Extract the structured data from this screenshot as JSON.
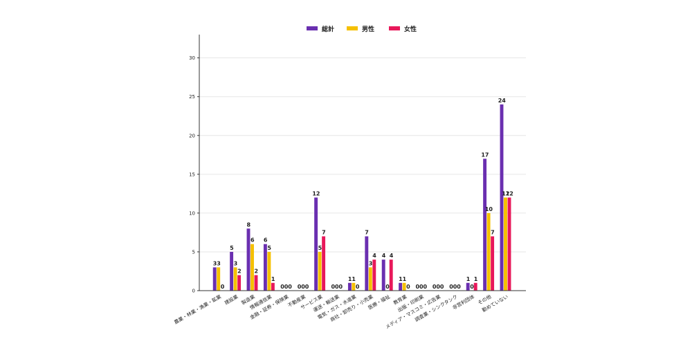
{
  "chart_data": {
    "type": "bar",
    "categories": [
      "農業・林業・漁業・鉱業",
      "建設業",
      "製造業",
      "情報通信業",
      "金融・証券・保険業",
      "不動産業",
      "サービス業",
      "運送・輸送業",
      "電気・ガス・水道業",
      "商社・卸売り・小売業",
      "医療・福祉",
      "教育業",
      "出版・印刷業",
      "メディア・マスコミ・広告業",
      "調査業・シンクタンク",
      "非営利団体",
      "その他",
      "勤めていない"
    ],
    "series": [
      {
        "name": "総計",
        "color": "#6a2fb0",
        "values": [
          3,
          5,
          8,
          6,
          0,
          0,
          12,
          0,
          1,
          7,
          4,
          1,
          0,
          0,
          0,
          1,
          17,
          24
        ]
      },
      {
        "name": "男性",
        "color": "#f5c000",
        "values": [
          3,
          3,
          6,
          5,
          0,
          0,
          5,
          0,
          1,
          3,
          0,
          1,
          0,
          0,
          0,
          0,
          10,
          12
        ]
      },
      {
        "name": "女性",
        "color": "#e8185a",
        "values": [
          0,
          2,
          2,
          1,
          0,
          0,
          7,
          0,
          0,
          4,
          4,
          0,
          0,
          0,
          0,
          1,
          7,
          12
        ]
      }
    ],
    "yticks": [
      0,
      5,
      10,
      15,
      20,
      25,
      30
    ],
    "ylim": [
      0,
      33
    ],
    "legend_position": "top-center",
    "grid": true
  }
}
